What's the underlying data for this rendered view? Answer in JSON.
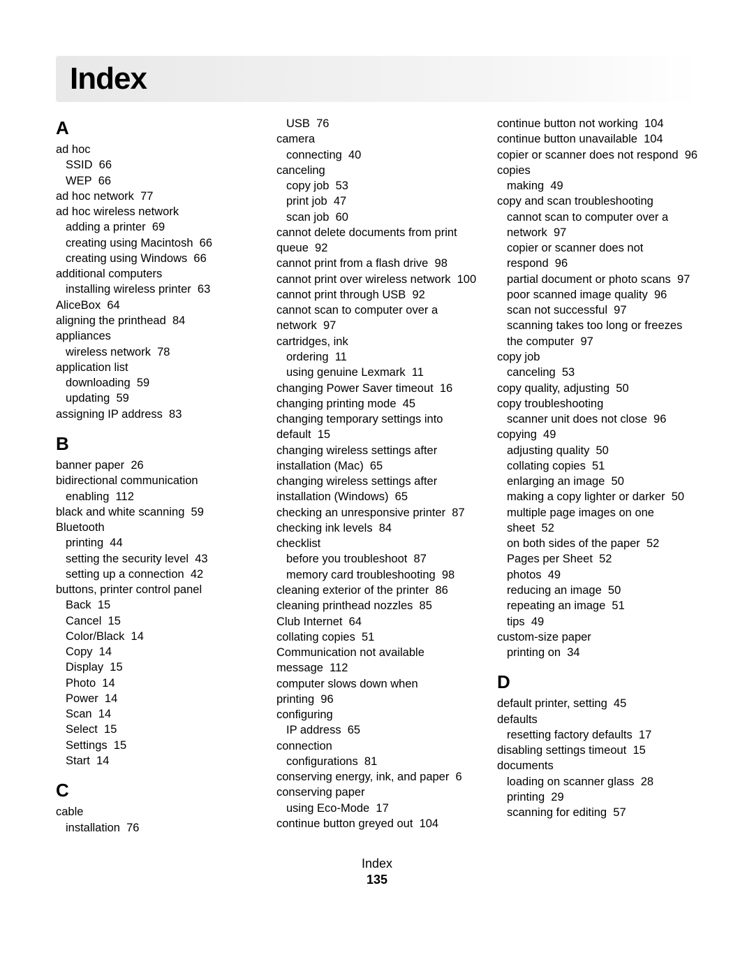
{
  "title": "Index",
  "footer_label": "Index",
  "page_number": "135",
  "sections": [
    {
      "letter": "A",
      "entries": [
        {
          "text": "ad hoc",
          "indent": 0
        },
        {
          "text": "SSID",
          "page": "66",
          "indent": 1
        },
        {
          "text": "WEP",
          "page": "66",
          "indent": 1
        },
        {
          "text": "ad hoc network",
          "page": "77",
          "indent": 0
        },
        {
          "text": "ad hoc wireless network",
          "indent": 0
        },
        {
          "text": "adding a printer",
          "page": "69",
          "indent": 1
        },
        {
          "text": "creating using Macintosh",
          "page": "66",
          "indent": 1
        },
        {
          "text": "creating using Windows",
          "page": "66",
          "indent": 1
        },
        {
          "text": "additional computers",
          "indent": 0
        },
        {
          "text": "installing wireless printer",
          "page": "63",
          "indent": 1
        },
        {
          "text": "AliceBox",
          "page": "64",
          "indent": 0
        },
        {
          "text": "aligning the printhead",
          "page": "84",
          "indent": 0
        },
        {
          "text": "appliances",
          "indent": 0
        },
        {
          "text": "wireless network",
          "page": "78",
          "indent": 1
        },
        {
          "text": "application list",
          "indent": 0
        },
        {
          "text": "downloading",
          "page": "59",
          "indent": 1
        },
        {
          "text": "updating",
          "page": "59",
          "indent": 1
        },
        {
          "text": "assigning IP address",
          "page": "83",
          "indent": 0
        }
      ]
    },
    {
      "letter": "B",
      "entries": [
        {
          "text": "banner paper",
          "page": "26",
          "indent": 0
        },
        {
          "text": "bidirectional communication",
          "indent": 0
        },
        {
          "text": "enabling",
          "page": "112",
          "indent": 1
        },
        {
          "text": "black and white scanning",
          "page": "59",
          "indent": 0
        },
        {
          "text": "Bluetooth",
          "indent": 0
        },
        {
          "text": "printing",
          "page": "44",
          "indent": 1
        },
        {
          "text": "setting the security level",
          "page": "43",
          "indent": 1
        },
        {
          "text": "setting up a connection",
          "page": "42",
          "indent": 1
        },
        {
          "text": "buttons, printer control panel",
          "indent": 0
        },
        {
          "text": "Back",
          "page": "15",
          "indent": 1
        },
        {
          "text": "Cancel",
          "page": "15",
          "indent": 1
        },
        {
          "text": "Color/Black",
          "page": "14",
          "indent": 1
        },
        {
          "text": "Copy",
          "page": "14",
          "indent": 1
        },
        {
          "text": "Display",
          "page": "15",
          "indent": 1
        },
        {
          "text": "Photo",
          "page": "14",
          "indent": 1
        },
        {
          "text": "Power",
          "page": "14",
          "indent": 1
        },
        {
          "text": "Scan",
          "page": "14",
          "indent": 1
        },
        {
          "text": "Select",
          "page": "15",
          "indent": 1
        },
        {
          "text": "Settings",
          "page": "15",
          "indent": 1
        },
        {
          "text": "Start",
          "page": "14",
          "indent": 1
        }
      ]
    },
    {
      "letter": "C",
      "entries": [
        {
          "text": "cable",
          "indent": 0
        },
        {
          "text": "installation",
          "page": "76",
          "indent": 1
        },
        {
          "text": "USB",
          "page": "76",
          "indent": 1
        },
        {
          "text": "camera",
          "indent": 0
        },
        {
          "text": "connecting",
          "page": "40",
          "indent": 1
        },
        {
          "text": "canceling",
          "indent": 0
        },
        {
          "text": "copy job",
          "page": "53",
          "indent": 1
        },
        {
          "text": "print job",
          "page": "47",
          "indent": 1
        },
        {
          "text": "scan job",
          "page": "60",
          "indent": 1
        },
        {
          "text": "cannot delete documents from print queue",
          "page": "92",
          "indent": 0
        },
        {
          "text": "cannot print from a flash drive",
          "page": "98",
          "indent": 0
        },
        {
          "text": "cannot print over wireless network",
          "page": "100",
          "indent": 0
        },
        {
          "text": "cannot print through USB",
          "page": "92",
          "indent": 0
        },
        {
          "text": "cannot scan to computer over a network",
          "page": "97",
          "indent": 0
        },
        {
          "text": "cartridges, ink",
          "indent": 0
        },
        {
          "text": "ordering",
          "page": "11",
          "indent": 1
        },
        {
          "text": "using genuine Lexmark",
          "page": "11",
          "indent": 1
        },
        {
          "text": "changing Power Saver timeout",
          "page": "16",
          "indent": 0
        },
        {
          "text": "changing printing mode",
          "page": "45",
          "indent": 0
        },
        {
          "text": "changing temporary settings into default",
          "page": "15",
          "indent": 0
        },
        {
          "text": "changing wireless settings after installation (Mac)",
          "page": "65",
          "indent": 0
        },
        {
          "text": "changing wireless settings after installation (Windows)",
          "page": "65",
          "indent": 0
        },
        {
          "text": "checking an unresponsive printer",
          "page": "87",
          "indent": 0
        },
        {
          "text": "checking ink levels",
          "page": "84",
          "indent": 0
        },
        {
          "text": "checklist",
          "indent": 0
        },
        {
          "text": "before you troubleshoot",
          "page": "87",
          "indent": 1
        },
        {
          "text": "memory card troubleshooting",
          "page": "98",
          "indent": 1
        },
        {
          "text": "cleaning exterior of the printer",
          "page": "86",
          "indent": 0
        },
        {
          "text": "cleaning printhead nozzles",
          "page": "85",
          "indent": 0
        },
        {
          "text": "Club Internet",
          "page": "64",
          "indent": 0
        },
        {
          "text": "collating copies",
          "page": "51",
          "indent": 0
        },
        {
          "text": "Communication not available message",
          "page": "112",
          "indent": 0
        },
        {
          "text": "computer slows down when printing",
          "page": "96",
          "indent": 0
        },
        {
          "text": "configuring",
          "indent": 0
        },
        {
          "text": "IP address",
          "page": "65",
          "indent": 1
        },
        {
          "text": "connection",
          "indent": 0
        },
        {
          "text": "configurations",
          "page": "81",
          "indent": 1
        },
        {
          "text": "conserving energy, ink, and paper",
          "page": "6",
          "indent": 0
        },
        {
          "text": "conserving paper",
          "indent": 0
        },
        {
          "text": "using Eco-Mode",
          "page": "17",
          "indent": 1
        },
        {
          "text": "continue button greyed out",
          "page": "104",
          "indent": 0
        },
        {
          "text": "continue button not working",
          "page": "104",
          "indent": 0
        },
        {
          "text": "continue button unavailable",
          "page": "104",
          "indent": 0
        },
        {
          "text": "copier or scanner does not respond",
          "page": "96",
          "indent": 0
        },
        {
          "text": "copies",
          "indent": 0
        },
        {
          "text": "making",
          "page": "49",
          "indent": 1
        },
        {
          "text": "copy and scan troubleshooting",
          "indent": 0
        },
        {
          "text": "cannot scan to computer over a network",
          "page": "97",
          "indent": 1
        },
        {
          "text": "copier or scanner does not respond",
          "page": "96",
          "indent": 1
        },
        {
          "text": "partial document or photo scans",
          "page": "97",
          "indent": 1
        },
        {
          "text": "poor scanned image quality",
          "page": "96",
          "indent": 1
        },
        {
          "text": "scan not successful",
          "page": "97",
          "indent": 1
        },
        {
          "text": "scanning takes too long or freezes the computer",
          "page": "97",
          "indent": 1
        },
        {
          "text": "copy job",
          "indent": 0
        },
        {
          "text": "canceling",
          "page": "53",
          "indent": 1
        },
        {
          "text": "copy quality, adjusting",
          "page": "50",
          "indent": 0
        },
        {
          "text": "copy troubleshooting",
          "indent": 0
        },
        {
          "text": "scanner unit does not close",
          "page": "96",
          "indent": 1
        },
        {
          "text": "copying",
          "page": "49",
          "indent": 0
        },
        {
          "text": "adjusting quality",
          "page": "50",
          "indent": 1
        },
        {
          "text": "collating copies",
          "page": "51",
          "indent": 1
        },
        {
          "text": "enlarging an image",
          "page": "50",
          "indent": 1
        },
        {
          "text": "making a copy lighter or darker",
          "page": "50",
          "indent": 1
        },
        {
          "text": "multiple page images on one sheet",
          "page": "52",
          "indent": 1
        },
        {
          "text": "on both sides of the paper",
          "page": "52",
          "indent": 1
        },
        {
          "text": "Pages per Sheet",
          "page": "52",
          "indent": 1
        },
        {
          "text": "photos",
          "page": "49",
          "indent": 1
        },
        {
          "text": "reducing an image",
          "page": "50",
          "indent": 1
        },
        {
          "text": "repeating an image",
          "page": "51",
          "indent": 1
        },
        {
          "text": "tips",
          "page": "49",
          "indent": 1
        },
        {
          "text": "custom-size paper",
          "indent": 0
        },
        {
          "text": "printing on",
          "page": "34",
          "indent": 1
        }
      ]
    },
    {
      "letter": "D",
      "entries": [
        {
          "text": "default printer, setting",
          "page": "45",
          "indent": 0
        },
        {
          "text": "defaults",
          "indent": 0
        },
        {
          "text": "resetting factory defaults",
          "page": "17",
          "indent": 1
        },
        {
          "text": "disabling settings timeout",
          "page": "15",
          "indent": 0
        },
        {
          "text": "documents",
          "indent": 0
        },
        {
          "text": "loading on scanner glass",
          "page": "28",
          "indent": 1
        },
        {
          "text": "printing",
          "page": "29",
          "indent": 1
        },
        {
          "text": "scanning for editing",
          "page": "57",
          "indent": 1
        }
      ]
    }
  ]
}
